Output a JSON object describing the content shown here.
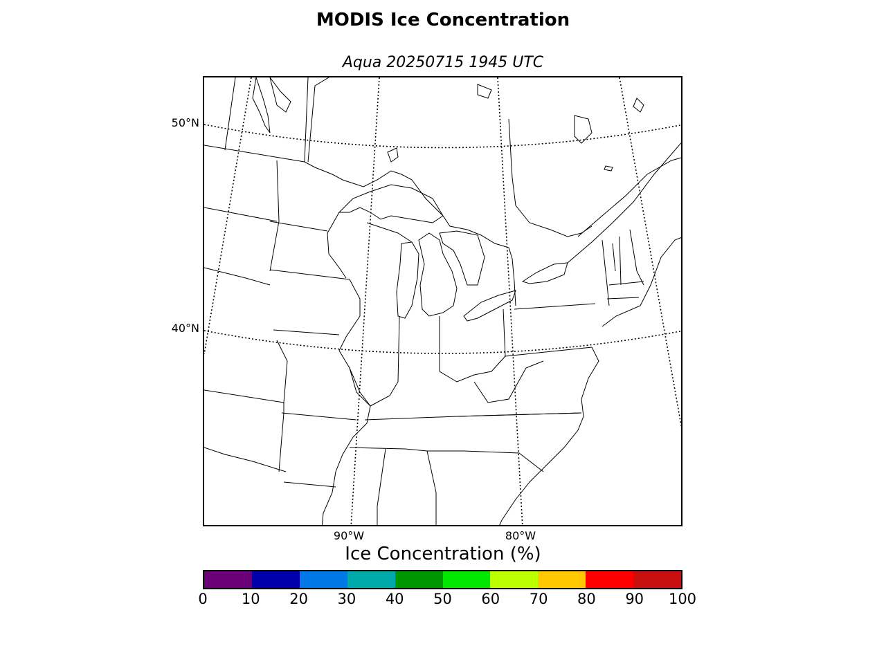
{
  "title": "MODIS Ice Concentration",
  "subtitle": "Aqua 20250715 1945 UTC",
  "map": {
    "lat_labels": [
      "50°N",
      "40°N"
    ],
    "lon_labels": [
      "90°W",
      "80°W"
    ]
  },
  "colorbar": {
    "label": "Ice Concentration (%)",
    "ticks": [
      "0",
      "10",
      "20",
      "30",
      "40",
      "50",
      "60",
      "70",
      "80",
      "90",
      "100"
    ],
    "colors": [
      "#6c0078",
      "#0000aa",
      "#0078e6",
      "#00aaaa",
      "#009600",
      "#00e600",
      "#bcff00",
      "#ffc800",
      "#ff0000",
      "#c81010"
    ]
  }
}
